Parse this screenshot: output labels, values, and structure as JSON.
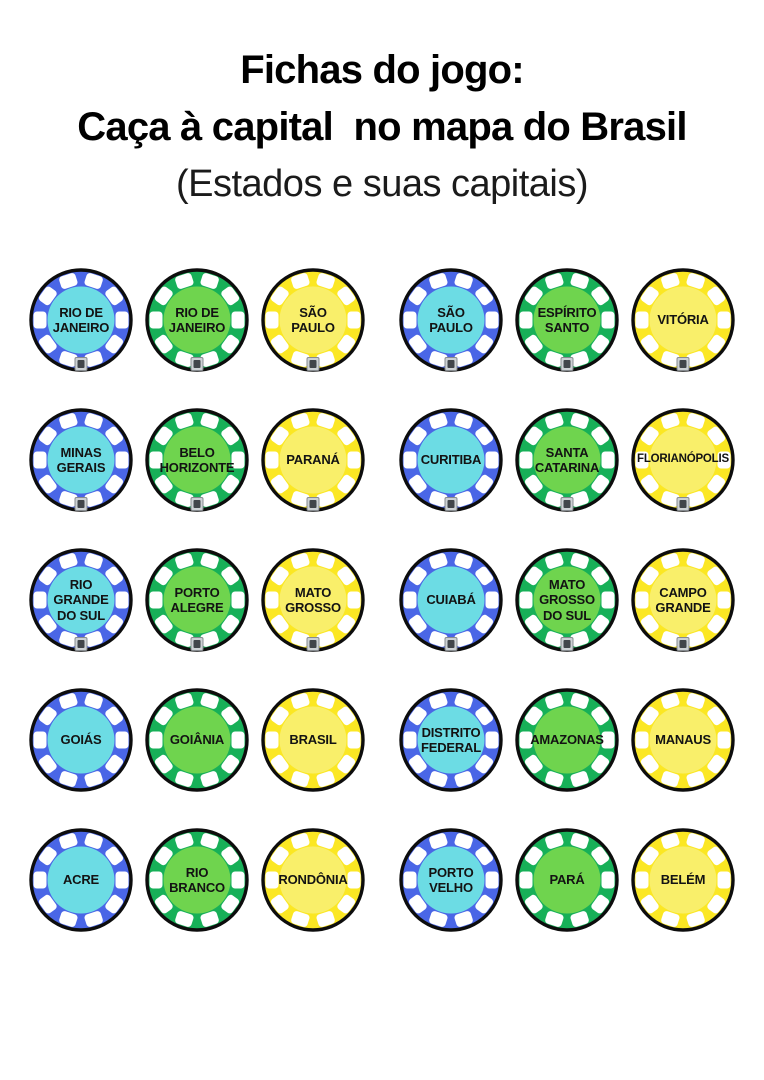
{
  "title": {
    "line1": "Fichas do jogo:",
    "line2": "Caça à capital  no mapa do Brasil",
    "line3": "(Estados e suas capitais)"
  },
  "palette": {
    "blue": {
      "ring": "#4a66e6",
      "inner": "#6cdce4"
    },
    "green": {
      "ring": "#17b058",
      "inner": "#6fd44e"
    },
    "yellow": {
      "ring": "#fbe723",
      "inner": "#f9ef6a"
    },
    "outline": "#0d0d0d",
    "notch": "#ffffff",
    "text": "#131313"
  },
  "grid": {
    "rows": 5,
    "cols": 6
  },
  "chips": [
    {
      "name": "RIO DE JANEIRO",
      "lines": [
        "RIO DE",
        "JANEIRO"
      ],
      "color": "blue",
      "badge": true
    },
    {
      "name": "RIO DE JANEIRO",
      "lines": [
        "RIO DE",
        "JANEIRO"
      ],
      "color": "green",
      "badge": true
    },
    {
      "name": "SÃO PAULO",
      "lines": [
        "SÃO",
        "PAULO"
      ],
      "color": "yellow",
      "badge": true
    },
    {
      "name": "SÃO PAULO",
      "lines": [
        "SÃO",
        "PAULO"
      ],
      "color": "blue",
      "badge": true
    },
    {
      "name": "ESPÍRITO SANTO",
      "lines": [
        "ESPÍRITO",
        "SANTO"
      ],
      "color": "green",
      "badge": true
    },
    {
      "name": "VITÓRIA",
      "lines": [
        "VITÓRIA"
      ],
      "color": "yellow",
      "badge": true
    },
    {
      "name": "MINAS GERAIS",
      "lines": [
        "MINAS",
        "GERAIS"
      ],
      "color": "blue",
      "badge": true
    },
    {
      "name": "BELO HORIZONTE",
      "lines": [
        "BELO",
        "HORIZONTE"
      ],
      "color": "green",
      "badge": true
    },
    {
      "name": "PARANÁ",
      "lines": [
        "PARANÁ"
      ],
      "color": "yellow",
      "badge": true
    },
    {
      "name": "CURITIBA",
      "lines": [
        "CURITIBA"
      ],
      "color": "blue",
      "badge": true
    },
    {
      "name": "SANTA CATARINA",
      "lines": [
        "SANTA",
        "CATARINA"
      ],
      "color": "green",
      "badge": true
    },
    {
      "name": "FLORIANÓPOLIS",
      "lines": [
        "FLORIANÓPOLIS"
      ],
      "color": "yellow",
      "badge": true,
      "size": 11.5
    },
    {
      "name": "RIO GRANDE DO SUL",
      "lines": [
        "RIO",
        "GRANDE",
        "DO SUL"
      ],
      "color": "blue",
      "badge": true
    },
    {
      "name": "PORTO ALEGRE",
      "lines": [
        "PORTO",
        "ALEGRE"
      ],
      "color": "green",
      "badge": true
    },
    {
      "name": "MATO GROSSO",
      "lines": [
        "MATO",
        "GROSSO"
      ],
      "color": "yellow",
      "badge": true
    },
    {
      "name": "CUIABÁ",
      "lines": [
        "CUIABÁ"
      ],
      "color": "blue",
      "badge": true
    },
    {
      "name": "MATO GROSSO DO SUL",
      "lines": [
        "MATO",
        "GROSSO",
        "DO SUL"
      ],
      "color": "green",
      "badge": true
    },
    {
      "name": "CAMPO GRANDE",
      "lines": [
        "CAMPO",
        "GRANDE"
      ],
      "color": "yellow",
      "badge": true
    },
    {
      "name": "GOIÁS",
      "lines": [
        "GOIÁS"
      ],
      "color": "blue",
      "badge": false
    },
    {
      "name": "GOIÂNIA",
      "lines": [
        "GOIÂNIA"
      ],
      "color": "green",
      "badge": false
    },
    {
      "name": "BRASIL",
      "lines": [
        "BRASIL"
      ],
      "color": "yellow",
      "badge": false
    },
    {
      "name": "DISTRITO FEDERAL",
      "lines": [
        "DISTRITO",
        "FEDERAL"
      ],
      "color": "blue",
      "badge": false
    },
    {
      "name": "AMAZONAS",
      "lines": [
        "AMAZONAS"
      ],
      "color": "green",
      "badge": false
    },
    {
      "name": "MANAUS",
      "lines": [
        "MANAUS"
      ],
      "color": "yellow",
      "badge": false
    },
    {
      "name": "ACRE",
      "lines": [
        "ACRE"
      ],
      "color": "blue",
      "badge": false
    },
    {
      "name": "RIO BRANCO",
      "lines": [
        "RIO",
        "BRANCO"
      ],
      "color": "green",
      "badge": false
    },
    {
      "name": "RONDÔNIA",
      "lines": [
        "RONDÔNIA"
      ],
      "color": "yellow",
      "badge": false
    },
    {
      "name": "PORTO VELHO",
      "lines": [
        "PORTO",
        "VELHO"
      ],
      "color": "blue",
      "badge": false
    },
    {
      "name": "PARÁ",
      "lines": [
        "PARÁ"
      ],
      "color": "green",
      "badge": false
    },
    {
      "name": "BELÉM",
      "lines": [
        "BELÉM"
      ],
      "color": "yellow",
      "badge": false
    }
  ]
}
